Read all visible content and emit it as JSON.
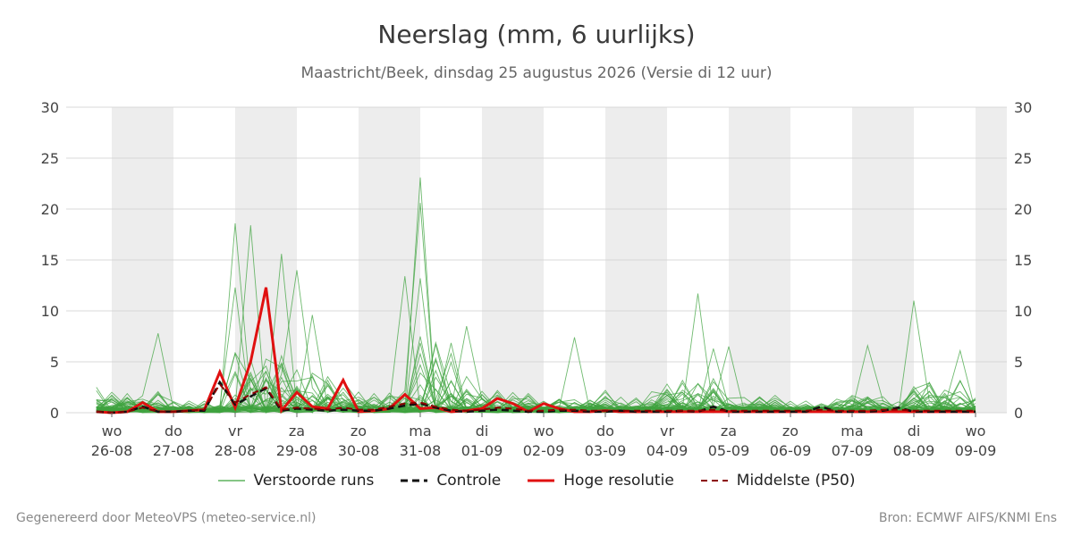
{
  "title": "Neerslag (mm, 6 uurlijks)",
  "subtitle": "Maastricht/Beek, dinsdag 25 augustus 2026 (Versie di 12 uur)",
  "footer": {
    "left": "Gegenereerd door MeteoVPS (meteo-service.nl)",
    "right": "Bron: ECMWF AIFS/KNMI Ens"
  },
  "colors": {
    "members": "#3fa33f",
    "control": "#111111",
    "highres": "#e01010",
    "median": "#8b0000",
    "shade": "#ededed"
  },
  "legend": [
    {
      "key": "members",
      "label": "Verstoorde runs",
      "style": "thin-green"
    },
    {
      "key": "control",
      "label": "Controle",
      "style": "dashed-black"
    },
    {
      "key": "highres",
      "label": "Hoge resolutie",
      "style": "solid-red"
    },
    {
      "key": "median",
      "label": "Middelste (P50)",
      "style": "dashed-darkred"
    }
  ],
  "chart_data": {
    "type": "line",
    "title": "Neerslag (mm, 6 uurlijks)",
    "ylabel": "",
    "ylim": [
      0,
      30
    ],
    "yticks": [
      0,
      5,
      10,
      15,
      20,
      25,
      30
    ],
    "grid": true,
    "legend_position": "bottom",
    "x_unit": "days from wo 26-08 00:00",
    "xlim": [
      -0.25,
      14.0
    ],
    "x_ticks": [
      {
        "x": 0,
        "day": "wo",
        "date": "26-08"
      },
      {
        "x": 1,
        "day": "do",
        "date": "27-08"
      },
      {
        "x": 2,
        "day": "vr",
        "date": "28-08"
      },
      {
        "x": 3,
        "day": "za",
        "date": "29-08"
      },
      {
        "x": 4,
        "day": "zo",
        "date": "30-08"
      },
      {
        "x": 5,
        "day": "ma",
        "date": "31-08"
      },
      {
        "x": 6,
        "day": "di",
        "date": "01-09"
      },
      {
        "x": 7,
        "day": "wo",
        "date": "02-09"
      },
      {
        "x": 8,
        "day": "do",
        "date": "03-09"
      },
      {
        "x": 9,
        "day": "vr",
        "date": "04-09"
      },
      {
        "x": 10,
        "day": "za",
        "date": "05-09"
      },
      {
        "x": 11,
        "day": "zo",
        "date": "06-09"
      },
      {
        "x": 12,
        "day": "ma",
        "date": "07-09"
      },
      {
        "x": 13,
        "day": "di",
        "date": "08-09"
      },
      {
        "x": 14,
        "day": "wo",
        "date": "09-09"
      }
    ],
    "shaded_days": [
      0,
      2,
      4,
      6,
      8,
      10,
      12,
      14
    ],
    "x": [
      -0.25,
      0,
      0.25,
      0.5,
      0.75,
      1,
      1.25,
      1.5,
      1.75,
      2,
      2.25,
      2.5,
      2.75,
      3,
      3.25,
      3.5,
      3.75,
      4,
      4.25,
      4.5,
      4.75,
      5,
      5.25,
      5.5,
      5.75,
      6,
      6.25,
      6.5,
      6.75,
      7,
      7.25,
      7.5,
      7.75,
      8,
      8.25,
      8.5,
      8.75,
      9,
      9.25,
      9.5,
      9.75,
      10,
      10.25,
      10.5,
      10.75,
      11,
      11.25,
      11.5,
      11.75,
      12,
      12.25,
      12.5,
      12.75,
      13,
      13.25,
      13.5,
      13.75,
      14
    ],
    "series": [
      {
        "name": "Hoge resolutie",
        "role": "highres",
        "values": [
          0.1,
          0.0,
          0.1,
          1.0,
          0.1,
          0.1,
          0.2,
          0.3,
          4.0,
          0.5,
          5.0,
          12.3,
          0.2,
          2.0,
          0.6,
          0.4,
          3.2,
          0.1,
          0.2,
          0.4,
          1.8,
          0.4,
          0.5,
          0.1,
          0.2,
          0.4,
          1.4,
          0.9,
          0.1,
          0.9,
          0.4,
          0.1,
          0.1,
          0.2,
          0.1,
          0.1,
          0.1,
          0.1,
          0.1,
          0.1,
          0.1,
          0.1,
          0.1,
          0.1,
          0.1,
          0.1,
          0.1,
          0.1,
          0.1,
          0.1,
          0.1,
          0.1,
          0.1,
          0.1,
          0.1,
          0.1,
          0.1,
          0.1
        ]
      },
      {
        "name": "Controle",
        "role": "control",
        "values": [
          0.1,
          0.0,
          0.1,
          0.6,
          0.1,
          0.1,
          0.2,
          0.2,
          3.0,
          0.8,
          1.6,
          2.4,
          0.2,
          0.4,
          0.3,
          0.2,
          0.3,
          0.2,
          0.2,
          0.4,
          0.7,
          0.9,
          0.5,
          0.2,
          0.1,
          0.2,
          0.3,
          0.2,
          0.1,
          0.1,
          0.2,
          0.2,
          0.1,
          0.1,
          0.2,
          0.1,
          0.1,
          0.1,
          0.2,
          0.1,
          0.6,
          0.1,
          0.1,
          0.1,
          0.1,
          0.1,
          0.1,
          0.6,
          0.1,
          0.1,
          0.1,
          0.2,
          0.5,
          0.1,
          0.1,
          0.1,
          0.1,
          0.1
        ]
      },
      {
        "name": "Middelste (P50)",
        "role": "median",
        "values": [
          0.1,
          0.0,
          0.1,
          0.5,
          0.1,
          0.1,
          0.2,
          0.3,
          2.8,
          1.0,
          1.8,
          2.5,
          0.3,
          0.5,
          0.4,
          0.3,
          0.5,
          0.3,
          0.3,
          0.6,
          0.9,
          1.0,
          0.6,
          0.3,
          0.2,
          0.3,
          0.5,
          0.4,
          0.2,
          0.2,
          0.3,
          0.3,
          0.2,
          0.2,
          0.2,
          0.2,
          0.2,
          0.2,
          0.2,
          0.2,
          0.3,
          0.2,
          0.2,
          0.2,
          0.2,
          0.2,
          0.2,
          0.3,
          0.2,
          0.2,
          0.2,
          0.3,
          0.3,
          0.2,
          0.2,
          0.2,
          0.2,
          0.2
        ]
      }
    ],
    "ensemble": {
      "name": "Verstoorde runs",
      "count": 50,
      "peaks_per_day": [
        7.8,
        3.5,
        18.6,
        15.6,
        6.6,
        23.1,
        8.5,
        4.8,
        7.4,
        11.7,
        6.5,
        4.1,
        6.6,
        11.0,
        6.1,
        4.9
      ],
      "notable_peaks": [
        {
          "x": 0.75,
          "value": 7.8
        },
        {
          "x": 2.0,
          "value": 18.6
        },
        {
          "x": 2.25,
          "value": 18.4
        },
        {
          "x": 2.75,
          "value": 15.6
        },
        {
          "x": 3.0,
          "value": 14.0
        },
        {
          "x": 5.0,
          "value": 23.1
        },
        {
          "x": 5.0,
          "value": 20.6
        },
        {
          "x": 4.75,
          "value": 13.4
        },
        {
          "x": 5.0,
          "value": 13.2
        },
        {
          "x": 2.0,
          "value": 12.3
        },
        {
          "x": 3.25,
          "value": 9.6
        },
        {
          "x": 5.75,
          "value": 8.5
        },
        {
          "x": 7.5,
          "value": 7.4
        },
        {
          "x": 9.5,
          "value": 11.7
        },
        {
          "x": 9.75,
          "value": 6.3
        },
        {
          "x": 10.0,
          "value": 6.5
        },
        {
          "x": 12.25,
          "value": 6.6
        },
        {
          "x": 13.0,
          "value": 11.0
        },
        {
          "x": 13.75,
          "value": 6.1
        }
      ]
    }
  }
}
